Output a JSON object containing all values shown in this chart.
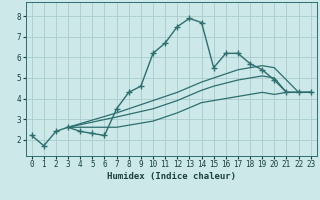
{
  "xlabel": "Humidex (Indice chaleur)",
  "background_color": "#cce8e8",
  "grid_color": "#aacccc",
  "line_color": "#2d6e6e",
  "xlim": [
    -0.5,
    23.5
  ],
  "ylim": [
    1.2,
    8.7
  ],
  "xticks": [
    0,
    1,
    2,
    3,
    4,
    5,
    6,
    7,
    8,
    9,
    10,
    11,
    12,
    13,
    14,
    15,
    16,
    17,
    18,
    19,
    20,
    21,
    22,
    23
  ],
  "yticks": [
    2,
    3,
    4,
    5,
    6,
    7,
    8
  ],
  "lines": [
    {
      "x": [
        0,
        1,
        2,
        3,
        4,
        5,
        6,
        7,
        8,
        9,
        10,
        11,
        12,
        13,
        14,
        15,
        16,
        17,
        18,
        19,
        20,
        21,
        22,
        23
      ],
      "y": [
        2.2,
        1.7,
        2.4,
        2.6,
        2.4,
        2.3,
        2.2,
        3.5,
        4.3,
        4.6,
        6.2,
        6.7,
        7.5,
        7.9,
        7.7,
        5.5,
        6.2,
        6.2,
        5.7,
        5.4,
        4.9,
        4.3,
        4.3,
        4.3
      ],
      "marker": "+",
      "markersize": 4,
      "linewidth": 1.0
    },
    {
      "x": [
        3,
        7,
        10,
        12,
        14,
        15,
        17,
        19,
        20,
        21,
        22,
        23
      ],
      "y": [
        2.6,
        3.3,
        3.9,
        4.3,
        4.8,
        5.0,
        5.4,
        5.6,
        5.5,
        4.9,
        4.3,
        4.3
      ],
      "marker": null,
      "markersize": 0,
      "linewidth": 0.9
    },
    {
      "x": [
        3,
        7,
        10,
        12,
        14,
        15,
        17,
        19,
        20,
        21,
        22,
        23
      ],
      "y": [
        2.6,
        3.1,
        3.5,
        3.9,
        4.4,
        4.6,
        4.9,
        5.1,
        5.0,
        4.3,
        4.3,
        4.3
      ],
      "marker": null,
      "markersize": 0,
      "linewidth": 0.9
    },
    {
      "x": [
        3,
        7,
        10,
        12,
        14,
        15,
        17,
        19,
        20,
        21,
        22,
        23
      ],
      "y": [
        2.6,
        2.6,
        2.9,
        3.3,
        3.8,
        3.9,
        4.1,
        4.3,
        4.2,
        4.3,
        4.3,
        4.3
      ],
      "marker": null,
      "markersize": 0,
      "linewidth": 0.9
    }
  ]
}
